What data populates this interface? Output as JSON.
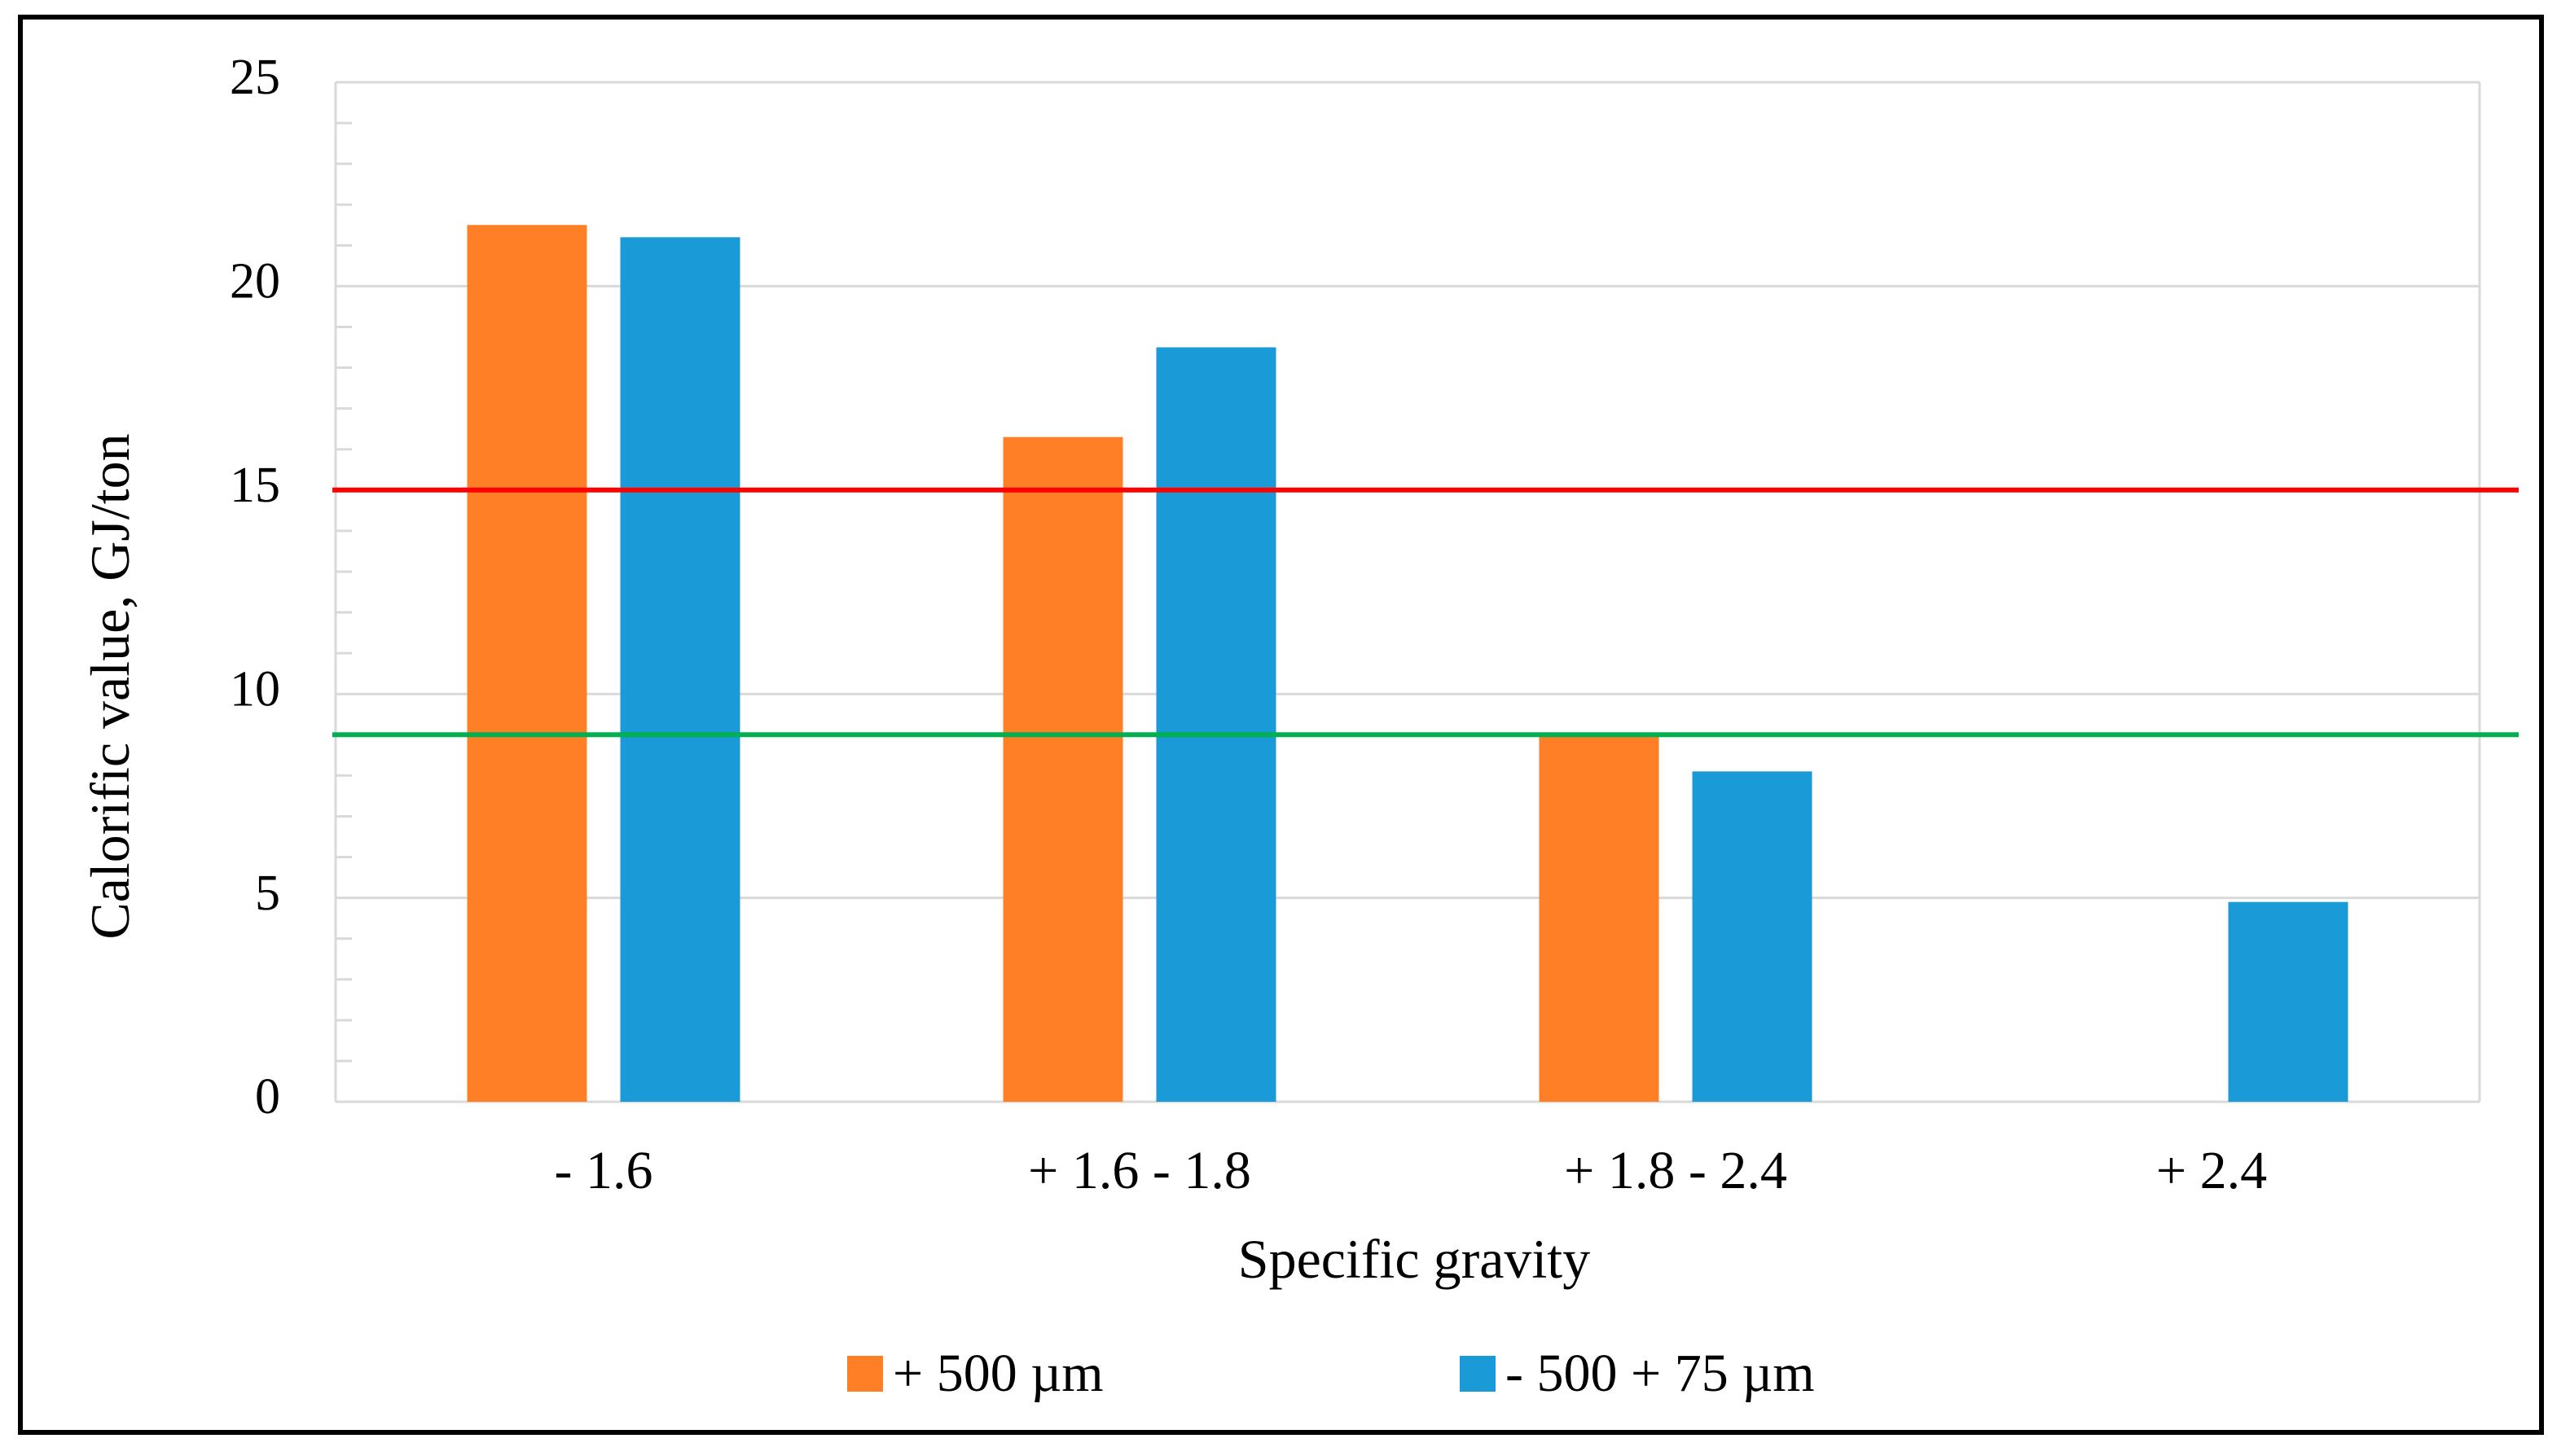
{
  "chart_data": {
    "type": "bar",
    "xlabel": "Specific gravity",
    "ylabel": "Calorific value, GJ/ton",
    "categories": [
      "- 1.6",
      "+ 1.6 - 1.8",
      "+ 1.8 - 2.4",
      "+ 2.4"
    ],
    "ylim": [
      0,
      25
    ],
    "yticks": [
      0,
      5,
      10,
      15,
      20,
      25
    ],
    "y_minor_step": 1,
    "grid": true,
    "legend_position": "bottom",
    "series": [
      {
        "name": "+ 500 µm",
        "color": "#FF7F27",
        "values": [
          21.5,
          16.3,
          9.0,
          0
        ]
      },
      {
        "name": "- 500 + 75 µm",
        "color": "#1A9BD7",
        "values": [
          21.2,
          18.5,
          8.1,
          4.9
        ]
      }
    ],
    "reference_lines": [
      {
        "y": 15,
        "color": "#FF0000"
      },
      {
        "y": 9,
        "color": "#00B050"
      }
    ]
  }
}
